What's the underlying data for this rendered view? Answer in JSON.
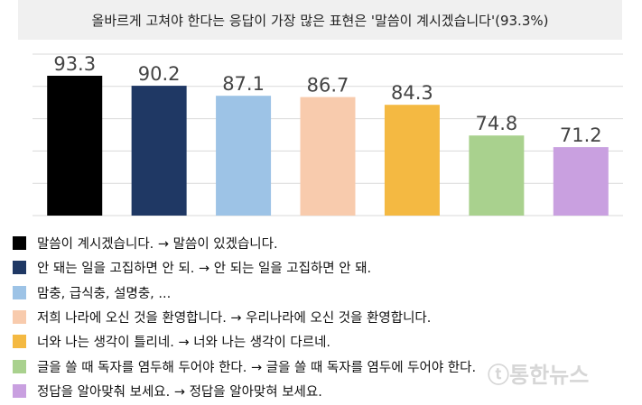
{
  "title": "올바르게 고쳐야 한다는 응답이 가장 많은 표현은 '말씀이 계시겠습니다'(93.3%)",
  "chart_data": {
    "type": "bar",
    "title": "올바르게 고쳐야 한다는 응답이 가장 많은 표현은 '말씀이 계시겠습니다'(93.3%)",
    "categories": [
      "말씀이 계시겠습니다. → 말씀이 있겠습니다.",
      "안 돼는 일을 고집하면 안 되. → 안 되는 일을 고집하면 안 돼.",
      "맘충, 급식충, 설명충, ...",
      "저희 나라에 오신 것을 환영합니다. → 우리나라에 오신 것을 환영합니다.",
      "너와 나는 생각이 틀리네. → 너와 나는 생각이 다르네.",
      "글을 쓸 때 독자를 염두해 두어야 한다. → 글을 쓸 때 독자를 염두에 두어야 한다.",
      "정답을 알아맞춰 보세요. → 정답을 알아맞혀 보세요."
    ],
    "values": [
      93.3,
      90.2,
      87.1,
      86.7,
      84.3,
      74.8,
      71.2
    ],
    "labels": [
      "93.3",
      "90.2",
      "87.1",
      "86.7",
      "84.3",
      "74.8",
      "71.2"
    ],
    "colors": [
      "#000000",
      "#1f3864",
      "#9dc3e6",
      "#f8cbad",
      "#f4b942",
      "#a9d18e",
      "#c9a0e0"
    ],
    "ylim": [
      50,
      100
    ],
    "grid": true,
    "legend_placement": "bottom"
  },
  "watermark": "통한뉴스"
}
